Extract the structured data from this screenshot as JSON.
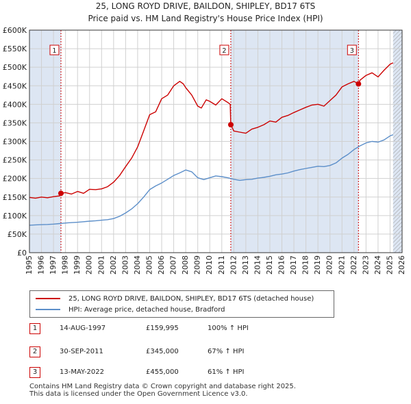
{
  "chart_data": {
    "type": "line",
    "title": "25, LONG ROYD DRIVE, BAILDON, SHIPLEY, BD17 6TS",
    "subtitle": "Price paid vs. HM Land Registry's House Price Index (HPI)",
    "xlabel": "",
    "ylabel": "",
    "xlim": [
      1995,
      2026
    ],
    "ylim": [
      0,
      600000
    ],
    "x_ticks": [
      1995,
      1996,
      1997,
      1998,
      1999,
      2000,
      2001,
      2002,
      2003,
      2004,
      2005,
      2006,
      2007,
      2008,
      2009,
      2010,
      2011,
      2012,
      2013,
      2014,
      2015,
      2016,
      2017,
      2018,
      2019,
      2020,
      2021,
      2022,
      2023,
      2024,
      2025,
      2026
    ],
    "y_ticks": [
      {
        "value": 0,
        "label": "£0"
      },
      {
        "value": 50000,
        "label": "£50K"
      },
      {
        "value": 100000,
        "label": "£100K"
      },
      {
        "value": 150000,
        "label": "£150K"
      },
      {
        "value": 200000,
        "label": "£200K"
      },
      {
        "value": 250000,
        "label": "£250K"
      },
      {
        "value": 300000,
        "label": "£300K"
      },
      {
        "value": 350000,
        "label": "£350K"
      },
      {
        "value": 400000,
        "label": "£400K"
      },
      {
        "value": 450000,
        "label": "£450K"
      },
      {
        "value": 500000,
        "label": "£500K"
      },
      {
        "value": 550000,
        "label": "£550K"
      },
      {
        "value": 600000,
        "label": "£600K"
      }
    ],
    "grid": true,
    "series": [
      {
        "name": "25, LONG ROYD DRIVE, BAILDON, SHIPLEY, BD17 6TS (detached house)",
        "color": "#cc0000",
        "x": [
          1995,
          1995.5,
          1996,
          1996.5,
          1997,
          1997.5,
          1997.62,
          1998,
          1998.5,
          1999,
          1999.5,
          2000,
          2000.5,
          2001,
          2001.5,
          2002,
          2002.5,
          2003,
          2003.5,
          2004,
          2004.5,
          2005,
          2005.5,
          2006,
          2006.5,
          2007,
          2007.5,
          2007.8,
          2008,
          2008.5,
          2009,
          2009.3,
          2009.7,
          2010,
          2010.5,
          2011,
          2011.5,
          2011.7,
          2011.75,
          2012,
          2012.5,
          2013,
          2013.5,
          2014,
          2014.5,
          2015,
          2015.5,
          2016,
          2016.5,
          2017,
          2017.5,
          2018,
          2018.5,
          2019,
          2019.5,
          2020,
          2020.5,
          2021,
          2021.5,
          2022,
          2022.37,
          2022.5,
          2023,
          2023.5,
          2024,
          2024.5,
          2025,
          2025.25
        ],
        "values": [
          149000,
          147000,
          150000,
          148000,
          151000,
          153000,
          159995,
          162000,
          158000,
          165000,
          160000,
          171000,
          170000,
          172000,
          178000,
          190000,
          208000,
          232000,
          255000,
          285000,
          328000,
          372000,
          380000,
          415000,
          425000,
          450000,
          462000,
          455000,
          445000,
          425000,
          395000,
          390000,
          412000,
          408000,
          398000,
          415000,
          405000,
          400000,
          345000,
          328000,
          325000,
          322000,
          333000,
          338000,
          345000,
          355000,
          352000,
          365000,
          370000,
          378000,
          385000,
          392000,
          398000,
          400000,
          395000,
          410000,
          425000,
          447000,
          455000,
          462000,
          455000,
          465000,
          478000,
          485000,
          474000,
          492000,
          508000,
          512000
        ]
      },
      {
        "name": "HPI: Average price, detached house, Bradford",
        "color": "#5b8ec9",
        "x": [
          1995,
          1995.5,
          1996,
          1996.5,
          1997,
          1997.5,
          1998,
          1998.5,
          1999,
          1999.5,
          2000,
          2000.5,
          2001,
          2001.5,
          2002,
          2002.5,
          2003,
          2003.5,
          2004,
          2004.5,
          2005,
          2005.5,
          2006,
          2006.5,
          2007,
          2007.5,
          2008,
          2008.5,
          2009,
          2009.5,
          2010,
          2010.5,
          2011,
          2011.5,
          2012,
          2012.5,
          2013,
          2013.5,
          2014,
          2014.5,
          2015,
          2015.5,
          2016,
          2016.5,
          2017,
          2017.5,
          2018,
          2018.5,
          2019,
          2019.5,
          2020,
          2020.5,
          2021,
          2021.5,
          2022,
          2022.5,
          2023,
          2023.5,
          2024,
          2024.5,
          2025,
          2025.25
        ],
        "values": [
          74000,
          75000,
          75500,
          76000,
          77000,
          78500,
          80000,
          81000,
          82000,
          83500,
          85000,
          86000,
          87500,
          89000,
          92000,
          98000,
          107000,
          118000,
          132000,
          150000,
          170000,
          180000,
          188000,
          198000,
          208000,
          215000,
          223000,
          218000,
          202000,
          197000,
          202000,
          207000,
          205000,
          202000,
          198000,
          195000,
          197000,
          198000,
          201000,
          203000,
          206000,
          210000,
          212000,
          215000,
          220000,
          224000,
          227000,
          230000,
          233000,
          232000,
          235000,
          242000,
          255000,
          265000,
          278000,
          288000,
          296000,
          300000,
          298000,
          304000,
          315000,
          318000
        ]
      }
    ],
    "sales": [
      {
        "label": "1",
        "x": 1997.62,
        "y": 159995
      },
      {
        "label": "2",
        "x": 2011.75,
        "y": 345000
      },
      {
        "label": "3",
        "x": 2022.37,
        "y": 455000
      }
    ],
    "shaded_spans": [
      [
        1995,
        1997.62
      ],
      [
        2011.75,
        2022.37
      ],
      [
        2025.25,
        2026
      ]
    ],
    "hatch_after": 2025.25
  },
  "legend": {
    "items": [
      {
        "label": "25, LONG ROYD DRIVE, BAILDON, SHIPLEY, BD17 6TS (detached house)",
        "color": "#cc0000"
      },
      {
        "label": "HPI: Average price, detached house, Bradford",
        "color": "#5b8ec9"
      }
    ]
  },
  "transactions": [
    {
      "num": "1",
      "date": "14-AUG-1997",
      "price": "£159,995",
      "hpi": "100% ↑ HPI"
    },
    {
      "num": "2",
      "date": "30-SEP-2011",
      "price": "£345,000",
      "hpi": "67% ↑ HPI"
    },
    {
      "num": "3",
      "date": "13-MAY-2022",
      "price": "£455,000",
      "hpi": "61% ↑ HPI"
    }
  ],
  "footer": {
    "line1": "Contains HM Land Registry data © Crown copyright and database right 2025.",
    "line2": "This data is licensed under the Open Government Licence v3.0."
  }
}
